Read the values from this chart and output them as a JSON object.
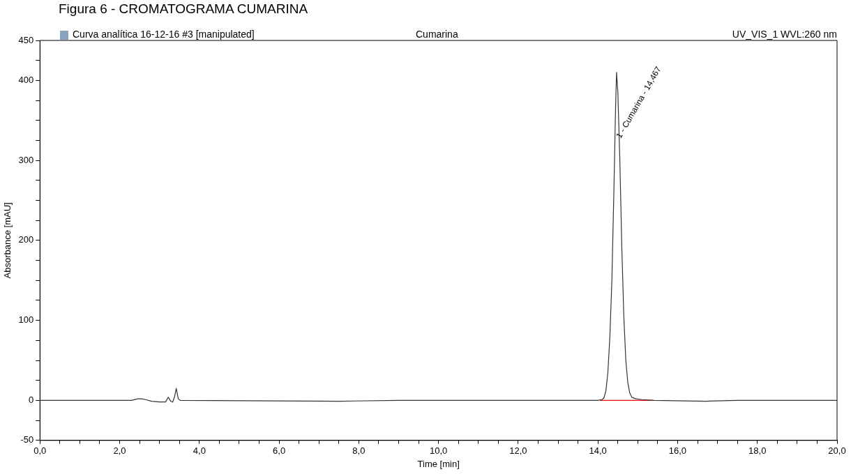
{
  "chart_data": {
    "type": "line",
    "title": "Figura 6 - CROMATOGRAMA CUMARINA",
    "subtitle": "Curva analítica 16-12-16 #3 [manipulated]",
    "xlabel": "Time [min]",
    "ylabel": "Absorbance [mAU]",
    "annotations": [
      "Cumarina",
      "UV_VIS_1 WVL:260 nm",
      {
        "text": "1 - Cumarina - 14,467",
        "x": 14.467,
        "y": 330
      }
    ],
    "series": [
      {
        "color": "#333333",
        "x": [
          0,
          2.3,
          2.45,
          2.55,
          2.65,
          2.8,
          3.0,
          3.15,
          3.22,
          3.28,
          3.33,
          3.38,
          3.42,
          3.47,
          3.52,
          7.5,
          9.0,
          14.0,
          14.1,
          14.15,
          14.2,
          14.25,
          14.3,
          14.35,
          14.4,
          14.44,
          14.467,
          14.5,
          14.55,
          14.6,
          14.65,
          14.7,
          14.75,
          14.8,
          14.85,
          14.95,
          15.1,
          15.4,
          16.7,
          17.5,
          20
        ],
        "values": [
          0,
          0,
          2,
          2,
          1,
          -1,
          -2,
          -2,
          4,
          -1,
          -2,
          5,
          15,
          2,
          0,
          -1,
          0,
          0,
          1,
          3,
          12,
          35,
          80,
          150,
          260,
          360,
          410,
          385,
          300,
          190,
          105,
          50,
          22,
          9,
          4,
          2,
          1,
          0,
          -1,
          0,
          0
        ]
      },
      {
        "color": "#ff0000",
        "x": [
          14.05,
          15.4
        ],
        "values": [
          0,
          0
        ]
      }
    ],
    "xlim": [
      0,
      20
    ],
    "ylim": [
      -50,
      450
    ],
    "xticks": [
      {
        "value": 0,
        "label": "0,0"
      },
      {
        "value": 0.5,
        "label": null
      },
      {
        "value": 1,
        "label": null
      },
      {
        "value": 1.5,
        "label": null
      },
      {
        "value": 2,
        "label": "2,0"
      },
      {
        "value": 2.5,
        "label": null
      },
      {
        "value": 3,
        "label": null
      },
      {
        "value": 3.5,
        "label": null
      },
      {
        "value": 4,
        "label": "4,0"
      },
      {
        "value": 4.5,
        "label": null
      },
      {
        "value": 5,
        "label": null
      },
      {
        "value": 5.5,
        "label": null
      },
      {
        "value": 6,
        "label": "6,0"
      },
      {
        "value": 6.5,
        "label": null
      },
      {
        "value": 7,
        "label": null
      },
      {
        "value": 7.5,
        "label": null
      },
      {
        "value": 8,
        "label": "8,0"
      },
      {
        "value": 8.5,
        "label": null
      },
      {
        "value": 9,
        "label": null
      },
      {
        "value": 9.5,
        "label": null
      },
      {
        "value": 10,
        "label": "10,0"
      },
      {
        "value": 10.5,
        "label": null
      },
      {
        "value": 11,
        "label": null
      },
      {
        "value": 11.5,
        "label": null
      },
      {
        "value": 12,
        "label": "12,0"
      },
      {
        "value": 12.5,
        "label": null
      },
      {
        "value": 13,
        "label": null
      },
      {
        "value": 13.5,
        "label": null
      },
      {
        "value": 14,
        "label": "14,0"
      },
      {
        "value": 14.5,
        "label": null
      },
      {
        "value": 15,
        "label": null
      },
      {
        "value": 15.5,
        "label": null
      },
      {
        "value": 16,
        "label": "16,0"
      },
      {
        "value": 16.5,
        "label": null
      },
      {
        "value": 17,
        "label": null
      },
      {
        "value": 17.5,
        "label": null
      },
      {
        "value": 18,
        "label": "18,0"
      },
      {
        "value": 18.5,
        "label": null
      },
      {
        "value": 19,
        "label": null
      },
      {
        "value": 19.5,
        "label": null
      },
      {
        "value": 20,
        "label": "20,0"
      }
    ],
    "yticks": [
      -50,
      {
        "value": -25,
        "label": null
      },
      0,
      {
        "value": 25,
        "label": null
      },
      {
        "value": 50,
        "label": null
      },
      {
        "value": 75,
        "label": null
      },
      100,
      {
        "value": 125,
        "label": null
      },
      {
        "value": 150,
        "label": null
      },
      {
        "value": 175,
        "label": null
      },
      200,
      {
        "value": 225,
        "label": null
      },
      {
        "value": 250,
        "label": null
      },
      {
        "value": 275,
        "label": null
      },
      300,
      {
        "value": 325,
        "label": null
      },
      {
        "value": 350,
        "label": null
      },
      {
        "value": 375,
        "label": null
      },
      400,
      {
        "value": 425,
        "label": null
      },
      450
    ],
    "grid": false,
    "legend": false,
    "marker": "none",
    "line_style": "solid"
  }
}
